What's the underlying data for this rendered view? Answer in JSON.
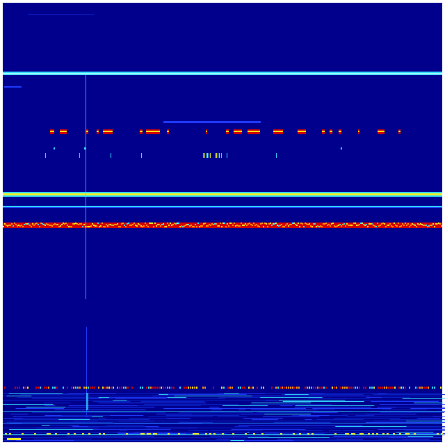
{
  "image": {
    "kind": "spectrogram-waterfall",
    "colormap": "jet",
    "colors": {
      "background": "#00008c",
      "border": "#ffffff",
      "cyan": "#33e0ff",
      "light_cyan": "#9ffcff",
      "yellow": "#f5f020",
      "orange": "#ff9a00",
      "red": "#d40000",
      "blue": "#1f3cff",
      "mid_blue": "#0a24c8"
    }
  }
}
